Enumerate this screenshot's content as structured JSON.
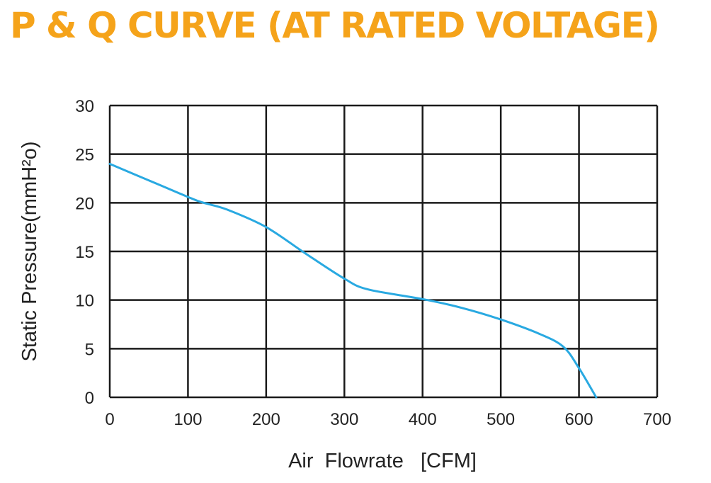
{
  "colors": {
    "title": "#F5A31A",
    "curve": "#29A9E1",
    "grid": "#1a1a1a",
    "text": "#222222"
  },
  "chart_data": {
    "type": "line",
    "title": "P & Q CURVE (AT RATED VOLTAGE)",
    "xlabel": "Air  Flowrate   [CFM]",
    "ylabel": "Static Pressure(mmH²o)",
    "xlim": [
      0,
      700
    ],
    "ylim": [
      0,
      30
    ],
    "xticks": [
      0,
      100,
      200,
      300,
      400,
      500,
      600,
      700
    ],
    "yticks": [
      0,
      5,
      10,
      15,
      20,
      25,
      30
    ],
    "grid": true,
    "series": [
      {
        "x": [
          0,
          50,
          100,
          120,
          150,
          200,
          250,
          300,
          330,
          400,
          450,
          500,
          550,
          580,
          600,
          622
        ],
        "y": [
          24,
          22.3,
          20.6,
          20.0,
          19.3,
          17.5,
          14.8,
          12.2,
          11.1,
          10.1,
          9.2,
          8.0,
          6.5,
          5.2,
          3.0,
          0
        ]
      }
    ]
  }
}
